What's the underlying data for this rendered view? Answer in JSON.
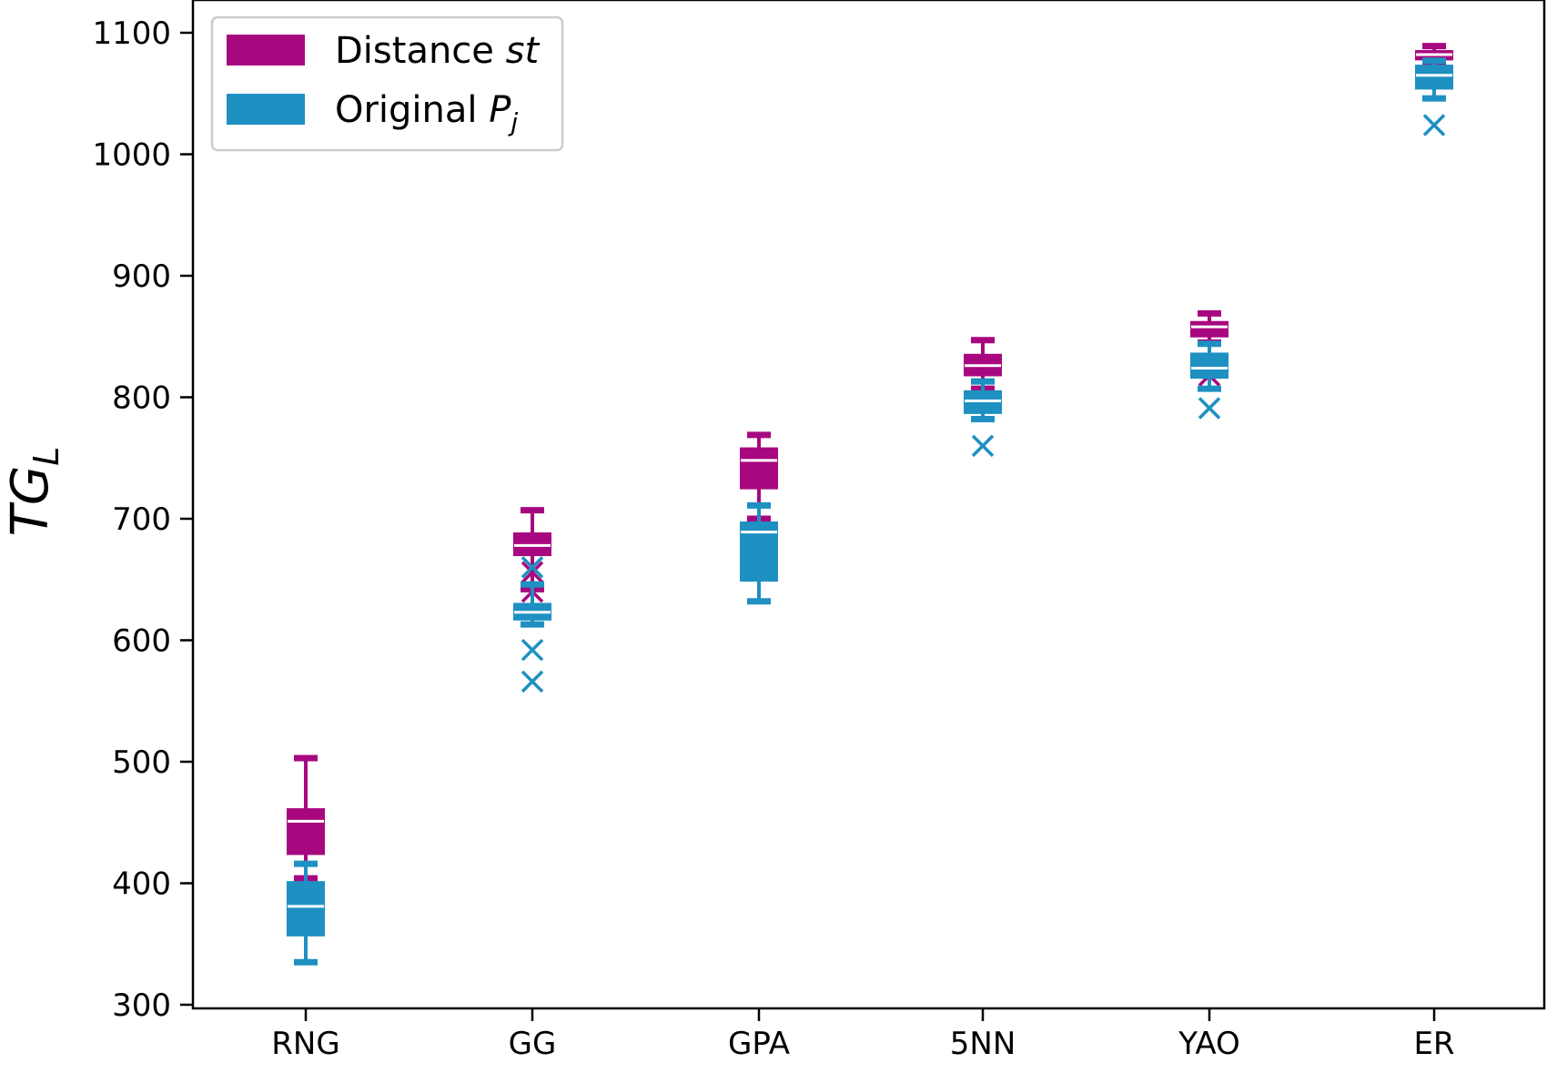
{
  "chart_data": {
    "type": "box",
    "title": "",
    "xlabel": "",
    "ylabel": "TG",
    "ylabel_sub": "L",
    "ylim": [
      300,
      1100
    ],
    "yticks": [
      300,
      400,
      500,
      600,
      700,
      800,
      900,
      1000,
      1100
    ],
    "categories": [
      "RNG",
      "GG",
      "GPA",
      "5NN",
      "YAO",
      "ER"
    ],
    "legend": {
      "placement": "top-left",
      "entries": [
        {
          "prefix": "Distance ",
          "var": "st",
          "sub": ""
        },
        {
          "prefix": "Original ",
          "var": "P",
          "sub": "j"
        }
      ]
    },
    "series": [
      {
        "name": "Distance st",
        "color": "#A8087F",
        "boxes": [
          {
            "whislo": 404,
            "q1": 424,
            "med": 451,
            "q3": 461,
            "whishi": 503,
            "fliers": []
          },
          {
            "whislo": 642,
            "q1": 670,
            "med": 678,
            "q3": 688,
            "whishi": 707,
            "fliers": [
              640,
              656
            ]
          },
          {
            "whislo": 700,
            "q1": 725,
            "med": 748,
            "q3": 758,
            "whishi": 769,
            "fliers": []
          },
          {
            "whislo": 807,
            "q1": 818,
            "med": 826,
            "q3": 835,
            "whishi": 847,
            "fliers": []
          },
          {
            "whislo": 845,
            "q1": 850,
            "med": 858,
            "q3": 862,
            "whishi": 869,
            "fliers": [
              818
            ]
          },
          {
            "whislo": 1075,
            "q1": 1078,
            "med": 1082,
            "q3": 1085,
            "whishi": 1089,
            "fliers": []
          }
        ]
      },
      {
        "name": "Original Pj",
        "color": "#1E90C2",
        "boxes": [
          {
            "whislo": 335,
            "q1": 357,
            "med": 381,
            "q3": 401,
            "whishi": 416,
            "fliers": []
          },
          {
            "whislo": 613,
            "q1": 617,
            "med": 623,
            "q3": 630,
            "whishi": 646,
            "fliers": [
              566,
              592,
              660
            ]
          },
          {
            "whislo": 632,
            "q1": 649,
            "med": 689,
            "q3": 697,
            "whishi": 711,
            "fliers": []
          },
          {
            "whislo": 782,
            "q1": 787,
            "med": 797,
            "q3": 805,
            "whishi": 813,
            "fliers": [
              760
            ]
          },
          {
            "whislo": 807,
            "q1": 816,
            "med": 824,
            "q3": 836,
            "whishi": 844,
            "fliers": [
              791
            ]
          },
          {
            "whislo": 1046,
            "q1": 1054,
            "med": 1065,
            "q3": 1073,
            "whishi": 1077,
            "fliers": [
              1024
            ]
          }
        ]
      }
    ]
  }
}
